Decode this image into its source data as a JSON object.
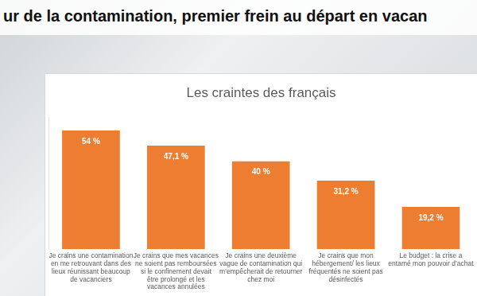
{
  "header": {
    "title": "ur de la contamination, premier frein au départ en vacan"
  },
  "chart_data": {
    "type": "bar",
    "title": "Les craintes des français",
    "categories": [
      "Je crains une contamination en me retrouvant dans des lieux réunissant beaucoup de vacanciers",
      "Je crains que mes vacances ne soient pas remboursées si le confinement devait être prolongé et les vacances annulées",
      "Je crains une deuxième vague de contamination qui m’empêcherait de retourner chez moi",
      "Je crains que mon hébergement/ les lieux fréquentés ne soient pas désinfectés",
      "Le budget : la crise a entamé mon pouvoir d’achat"
    ],
    "values": [
      54,
      47.1,
      40,
      31.2,
      19.2
    ],
    "value_labels": [
      "54 %",
      "47,1 %",
      "40 %",
      "31,2 %",
      "19,2 %"
    ],
    "color": "#ed7d31",
    "ylim": [
      0,
      60
    ],
    "grid": false,
    "data_labels": true,
    "tick_labels": "x"
  }
}
